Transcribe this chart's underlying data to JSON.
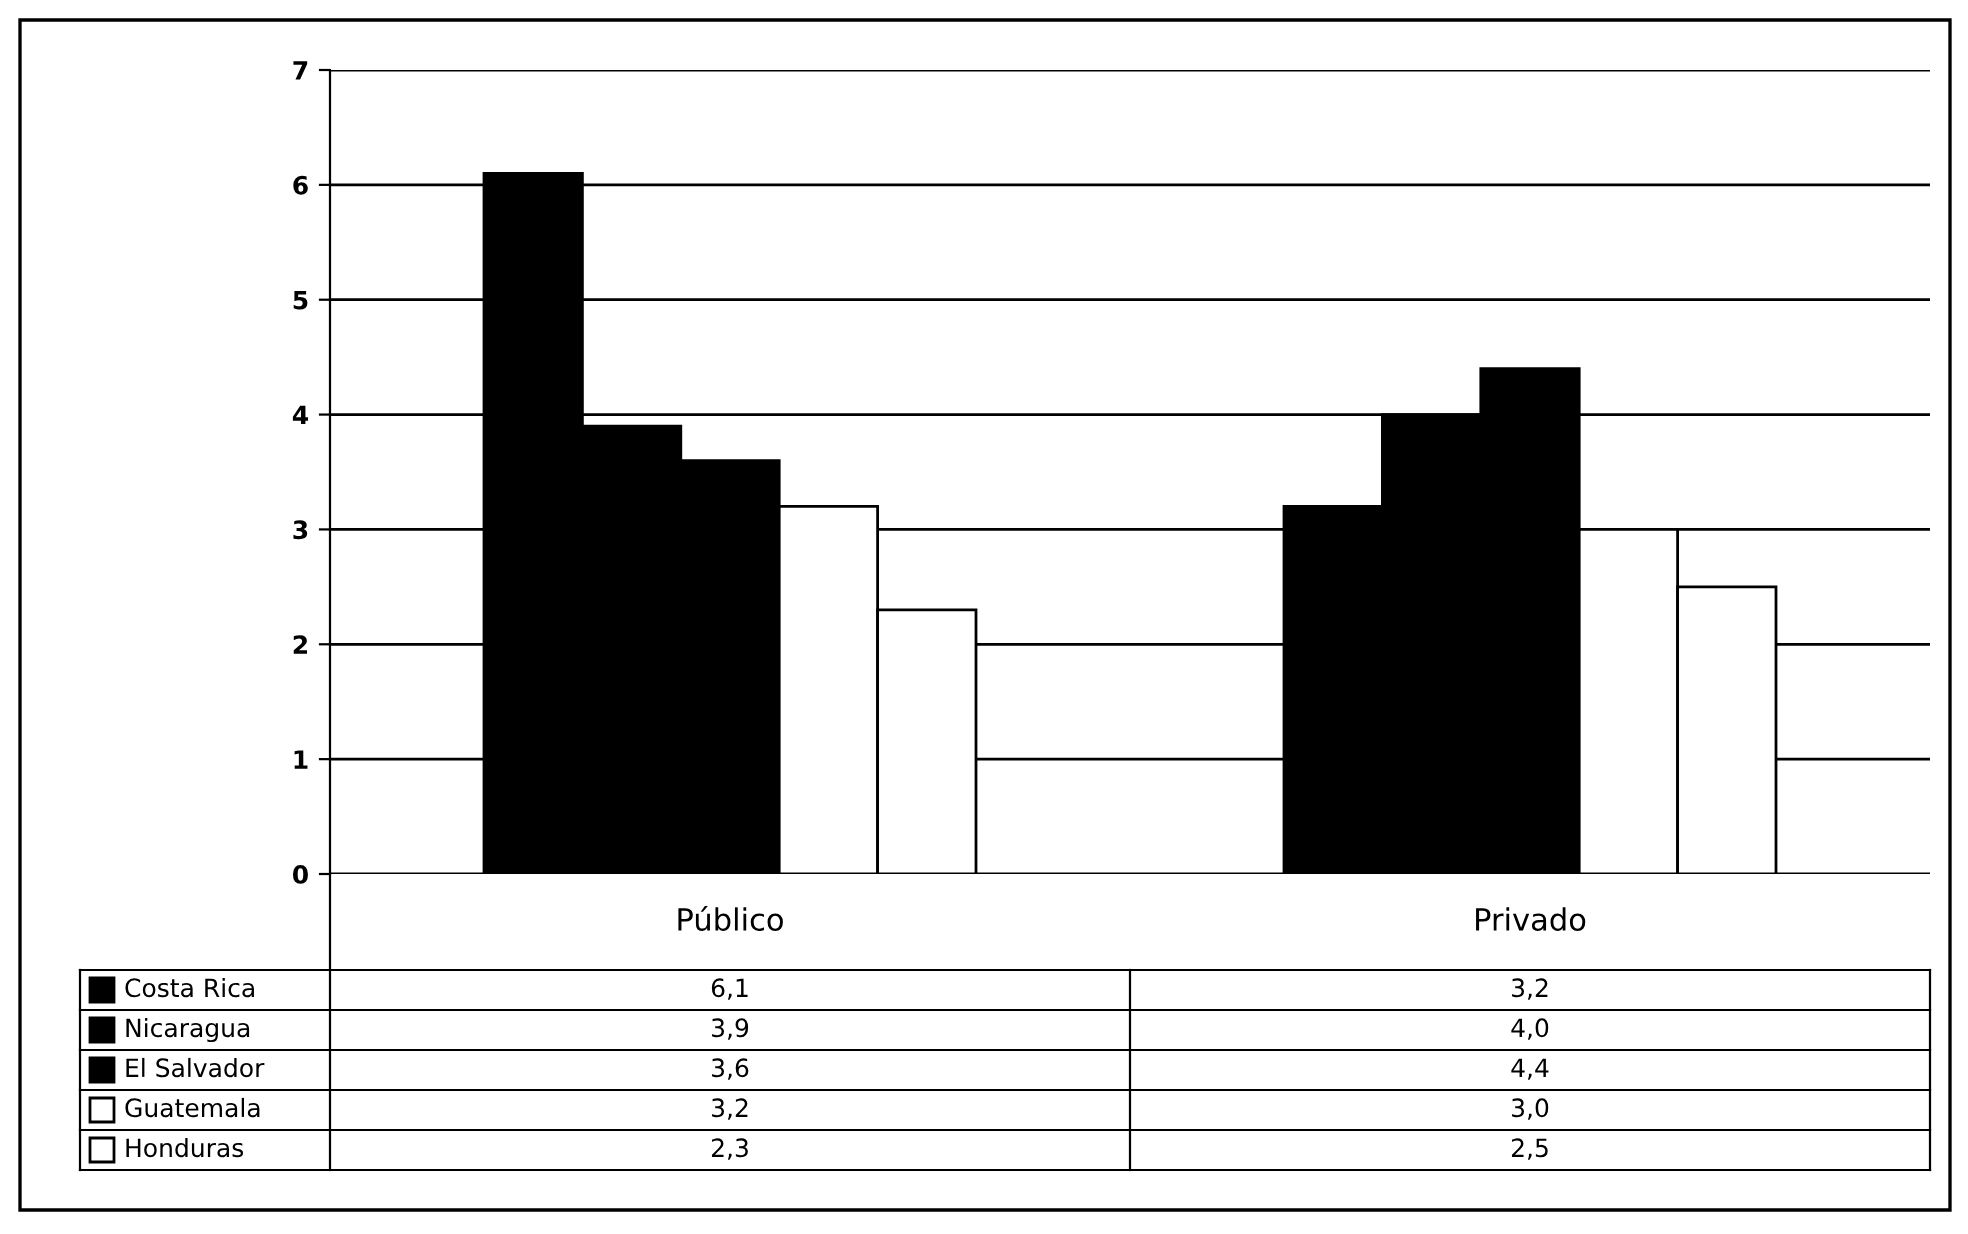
{
  "chart_data": {
    "type": "bar",
    "categories": [
      "Público",
      "Privado"
    ],
    "series": [
      {
        "name": "Costa Rica",
        "color": "#000000",
        "values": [
          6.1,
          3.2
        ],
        "value_labels": [
          "6,1",
          "3,2"
        ]
      },
      {
        "name": "Nicaragua",
        "color": "#000000",
        "values": [
          3.9,
          4.0
        ],
        "value_labels": [
          "3,9",
          "4,0"
        ]
      },
      {
        "name": "El Salvador",
        "color": "#000000",
        "values": [
          3.6,
          4.4
        ],
        "value_labels": [
          "3,6",
          "4,4"
        ]
      },
      {
        "name": "Guatemala",
        "color": "#ffffff",
        "values": [
          3.2,
          3.0
        ],
        "value_labels": [
          "3,2",
          "3,0"
        ]
      },
      {
        "name": "Honduras",
        "color": "#ffffff",
        "values": [
          2.3,
          2.5
        ],
        "value_labels": [
          "2,3",
          "2,5"
        ]
      }
    ],
    "ylim": [
      0,
      7
    ],
    "yticks": [
      0,
      1,
      2,
      3,
      4,
      5,
      6,
      7
    ],
    "grid": "y",
    "legend": "bottom"
  }
}
